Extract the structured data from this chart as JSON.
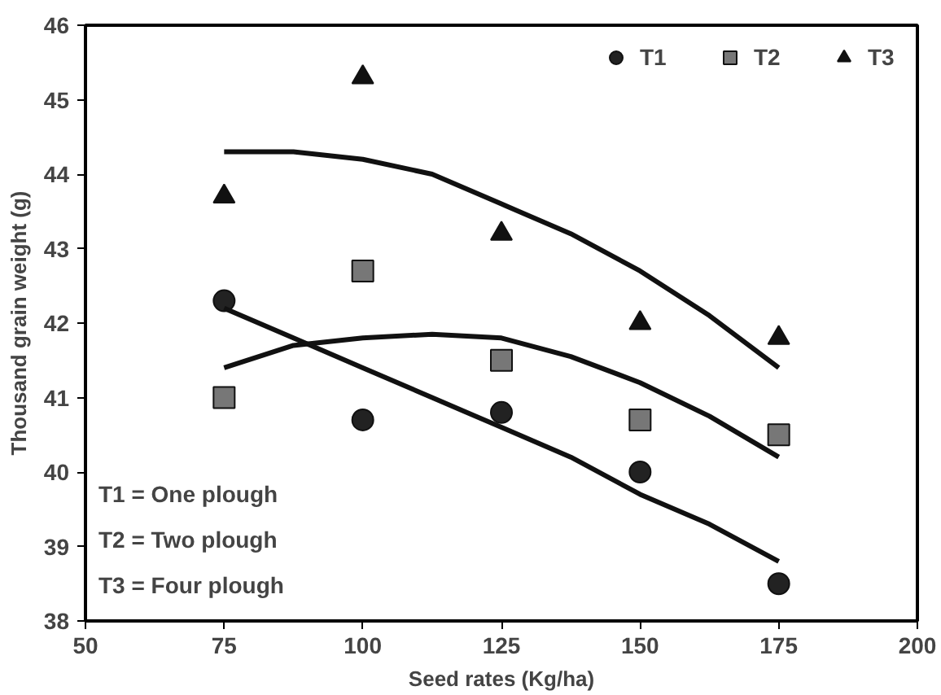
{
  "chart_data": {
    "type": "scatter",
    "xlabel": "Seed rates (Kg/ha)",
    "ylabel": "Thousand grain weight (g)",
    "xlim": [
      50,
      200
    ],
    "xticks": [
      50,
      75,
      100,
      125,
      150,
      175,
      200
    ],
    "ylim": [
      38,
      46
    ],
    "yticks": [
      38,
      39,
      40,
      41,
      42,
      43,
      44,
      45,
      46
    ],
    "x": [
      75,
      100,
      125,
      150,
      175
    ],
    "series": [
      {
        "name": "T1",
        "color": "#222222",
        "marker": "circle",
        "values": [
          42.3,
          40.7,
          40.8,
          40.0,
          38.5
        ]
      },
      {
        "name": "T2",
        "color": "#777777",
        "marker": "square",
        "values": [
          41.0,
          42.7,
          41.5,
          40.7,
          40.5
        ]
      },
      {
        "name": "T3",
        "color": "#111111",
        "marker": "triangle",
        "values": [
          43.7,
          45.3,
          43.2,
          42.0,
          41.8
        ]
      },
      {
        "type": "line",
        "color": "#111111",
        "x": [
          75,
          87.5,
          100,
          112.5,
          125,
          137.5,
          150,
          162.5,
          175
        ],
        "values": [
          42.2,
          41.8,
          41.4,
          41.0,
          40.6,
          40.2,
          39.7,
          39.3,
          38.8
        ]
      },
      {
        "type": "line",
        "color": "#111111",
        "x": [
          75,
          87.5,
          100,
          112.5,
          125,
          137.5,
          150,
          162.5,
          175
        ],
        "values": [
          41.4,
          41.7,
          41.8,
          41.85,
          41.8,
          41.55,
          41.2,
          40.75,
          40.2
        ]
      },
      {
        "type": "line",
        "color": "#111111",
        "x": [
          75,
          87.5,
          100,
          112.5,
          125,
          137.5,
          150,
          162.5,
          175
        ],
        "values": [
          44.3,
          44.3,
          44.2,
          44.0,
          43.6,
          43.2,
          42.7,
          42.1,
          41.4
        ]
      }
    ],
    "annotations": [
      "T1 = One plough",
      "T2 = Two plough",
      "T3 = Four plough"
    ],
    "legend": "top right",
    "grid": false
  }
}
